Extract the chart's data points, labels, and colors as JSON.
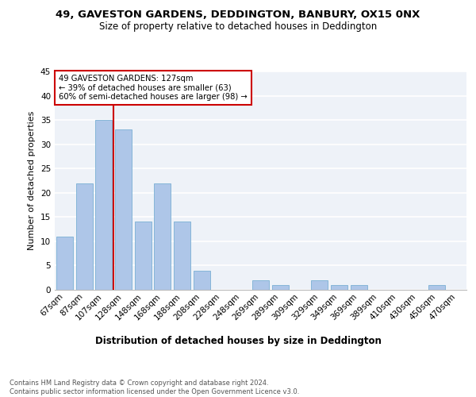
{
  "title1": "49, GAVESTON GARDENS, DEDDINGTON, BANBURY, OX15 0NX",
  "title2": "Size of property relative to detached houses in Deddington",
  "xlabel": "Distribution of detached houses by size in Deddington",
  "ylabel": "Number of detached properties",
  "categories": [
    "67sqm",
    "87sqm",
    "107sqm",
    "128sqm",
    "148sqm",
    "168sqm",
    "188sqm",
    "208sqm",
    "228sqm",
    "248sqm",
    "269sqm",
    "289sqm",
    "309sqm",
    "329sqm",
    "349sqm",
    "369sqm",
    "389sqm",
    "410sqm",
    "430sqm",
    "450sqm",
    "470sqm"
  ],
  "values": [
    11,
    22,
    35,
    33,
    14,
    22,
    14,
    4,
    0,
    0,
    2,
    1,
    0,
    2,
    1,
    1,
    0,
    0,
    0,
    1,
    0
  ],
  "bar_color": "#aec6e8",
  "bar_edge_color": "#7aafd4",
  "vline_color": "#cc0000",
  "annotation_text": "49 GAVESTON GARDENS: 127sqm\n← 39% of detached houses are smaller (63)\n60% of semi-detached houses are larger (98) →",
  "annotation_box_color": "#cc0000",
  "ylim": [
    0,
    45
  ],
  "yticks": [
    0,
    5,
    10,
    15,
    20,
    25,
    30,
    35,
    40,
    45
  ],
  "footnote": "Contains HM Land Registry data © Crown copyright and database right 2024.\nContains public sector information licensed under the Open Government Licence v3.0.",
  "bg_color": "#eef2f8",
  "title1_fontsize": 9.5,
  "title2_fontsize": 8.5,
  "xlabel_fontsize": 8.5,
  "ylabel_fontsize": 8.0,
  "tick_fontsize": 7.5,
  "footnote_fontsize": 6.0
}
